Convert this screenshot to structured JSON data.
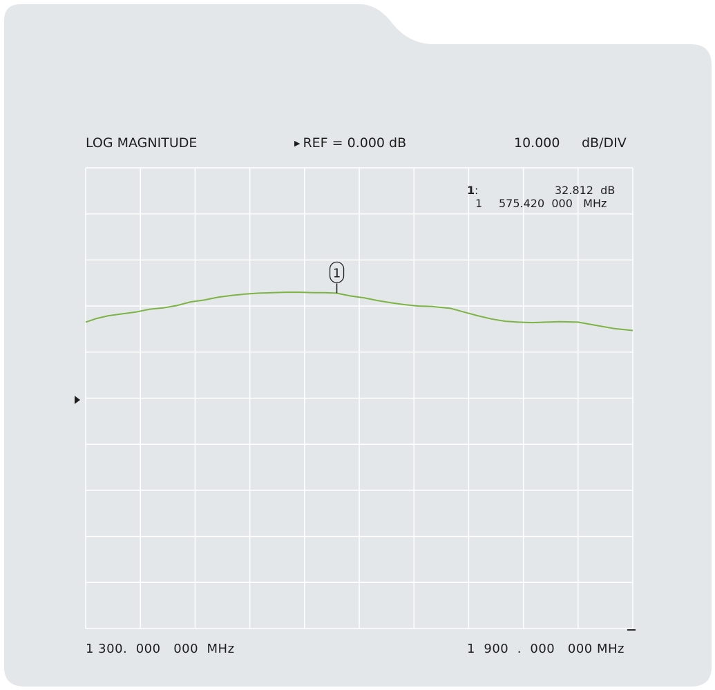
{
  "header": {
    "format": "LOG MAGNITUDE",
    "reference": "REF = 0.000  dB",
    "scale_value": "10.000",
    "scale_unit": "dB/DIV"
  },
  "marker": {
    "number": "1",
    "label": "1",
    "separator": ":",
    "value": "32.812  dB",
    "freq_prefix": "1",
    "frequency": "575.420  000   MHz"
  },
  "footer": {
    "start": "1 300.  000   000  MHz",
    "stop": "1  900  .  000   000 MHz"
  },
  "colors": {
    "panel": "#e3e7ea",
    "grid": "#ffffff",
    "trace": "#7cb342",
    "text": "#1e1e1e"
  },
  "chart_data": {
    "type": "line",
    "title": "LOG MAGNITUDE",
    "xlabel": "",
    "ylabel": "",
    "xlim": [
      1300,
      1900
    ],
    "ylim": [
      -40,
      60
    ],
    "ref_db": 0,
    "db_per_div": 10,
    "grid": true,
    "x_divisions": 10,
    "y_divisions": 10,
    "series": [
      {
        "x": [
          1300,
          1312,
          1325,
          1340,
          1355,
          1370,
          1385,
          1400,
          1415,
          1430,
          1445,
          1460,
          1475,
          1490,
          1505,
          1520,
          1535,
          1550,
          1562,
          1575,
          1590,
          1605,
          1620,
          1635,
          1650,
          1665,
          1680,
          1700,
          1715,
          1730,
          1745,
          1760,
          1775,
          1790,
          1805,
          1820,
          1840,
          1860,
          1880,
          1900
        ],
        "y": [
          26.5,
          27.3,
          27.9,
          28.3,
          28.7,
          29.3,
          29.6,
          30.1,
          30.9,
          31.3,
          31.9,
          32.3,
          32.6,
          32.8,
          32.9,
          33.0,
          33.0,
          32.9,
          32.9,
          32.8,
          32.2,
          31.8,
          31.2,
          30.7,
          30.3,
          30.0,
          29.9,
          29.5,
          28.7,
          27.9,
          27.2,
          26.7,
          26.5,
          26.4,
          26.5,
          26.6,
          26.5,
          25.8,
          25.1,
          24.7
        ]
      }
    ],
    "marker": {
      "number": 1,
      "x": 1575.42,
      "y": 32.812
    }
  }
}
